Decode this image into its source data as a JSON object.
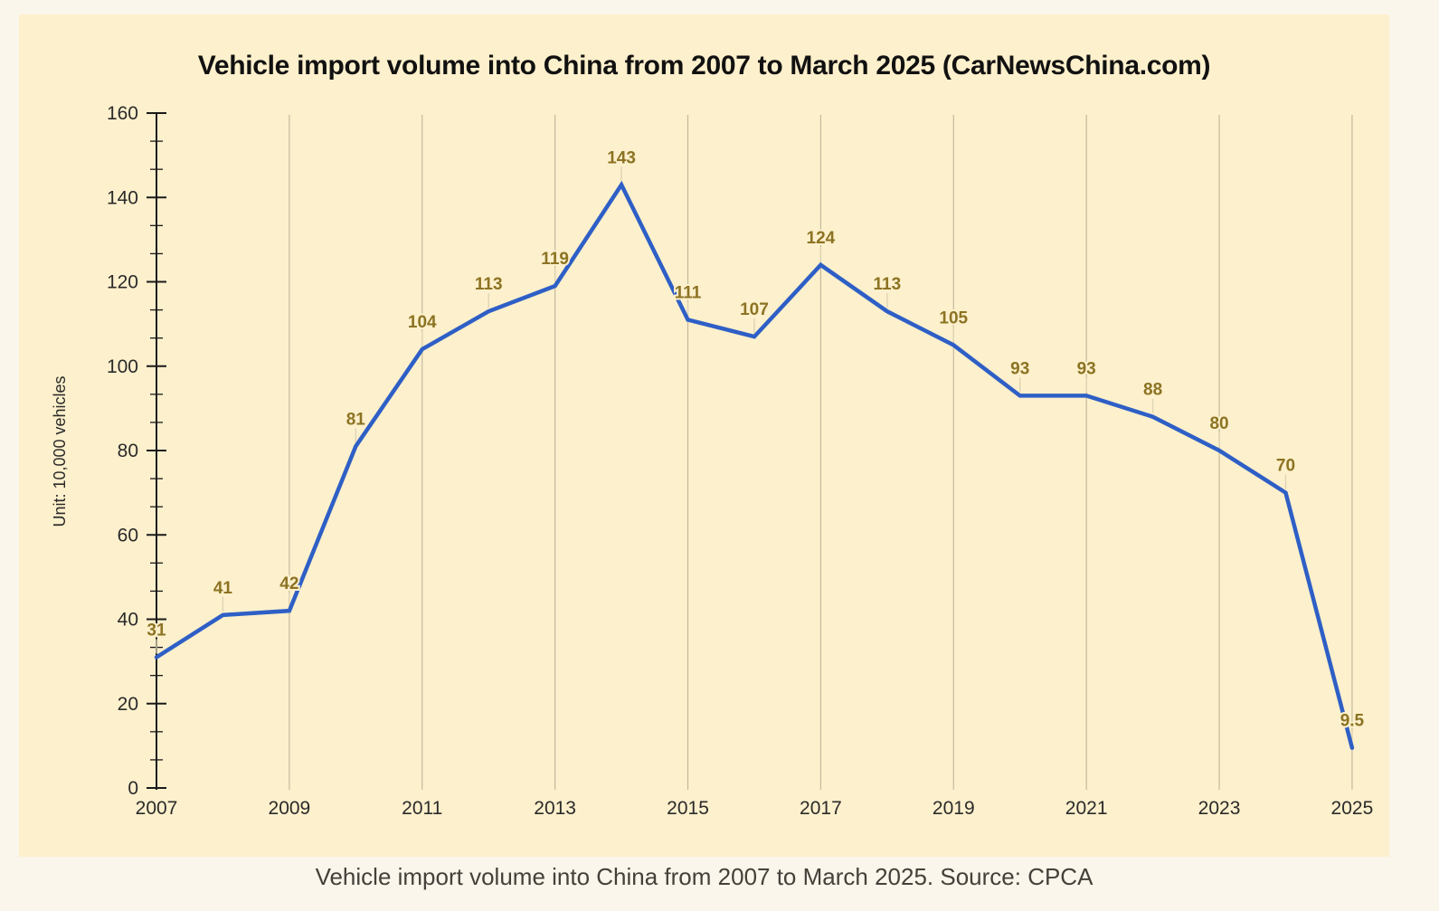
{
  "chart_data": {
    "type": "line",
    "title": "Vehicle import volume into China from 2007 to March 2025 (CarNewsChina.com)",
    "xlabel": "",
    "ylabel": "Unit: 10,000 vehicles",
    "x": [
      2007,
      2008,
      2009,
      2010,
      2011,
      2012,
      2013,
      2014,
      2015,
      2016,
      2017,
      2018,
      2019,
      2020,
      2021,
      2022,
      2023,
      2024,
      2025
    ],
    "values": [
      31,
      41,
      42,
      81,
      104,
      113,
      119,
      143,
      111,
      107,
      124,
      113,
      105,
      93,
      93,
      88,
      80,
      70,
      9.5
    ],
    "point_labels": [
      "31",
      "41",
      "42",
      "81",
      "104",
      "113",
      "119",
      "143",
      "111",
      "107",
      "124",
      "113",
      "105",
      "93",
      "93",
      "88",
      "80",
      "70",
      "9.5"
    ],
    "ylim": [
      0,
      160
    ],
    "ytick_step": 20,
    "ytick_labels": [
      "0",
      "20",
      "40",
      "60",
      "80",
      "100",
      "120",
      "140",
      "160"
    ],
    "xtick_years": [
      2007,
      2009,
      2011,
      2013,
      2015,
      2017,
      2019,
      2021,
      2023,
      2025
    ],
    "xtick_labels": [
      "2007",
      "2009",
      "2011",
      "2013",
      "2015",
      "2017",
      "2019",
      "2021",
      "2023",
      "2025"
    ],
    "legend": "none",
    "grid": "vertical-lines-at-labeled-years",
    "colors": {
      "line": "#2e5fc6",
      "point_label": "#8c7323",
      "axis": "#1a1a1a",
      "tick_label": "#2a2a2a",
      "gridline": "#c2ba9f",
      "leader_line": "#ddd4b6",
      "panel_bg": "#fdf0cc",
      "page_bg": "#fbf6eb",
      "title": "#111111",
      "caption": "#44403a"
    }
  },
  "caption": {
    "text": "Vehicle import volume into China from 2007 to March 2025. Source: CPCA"
  }
}
